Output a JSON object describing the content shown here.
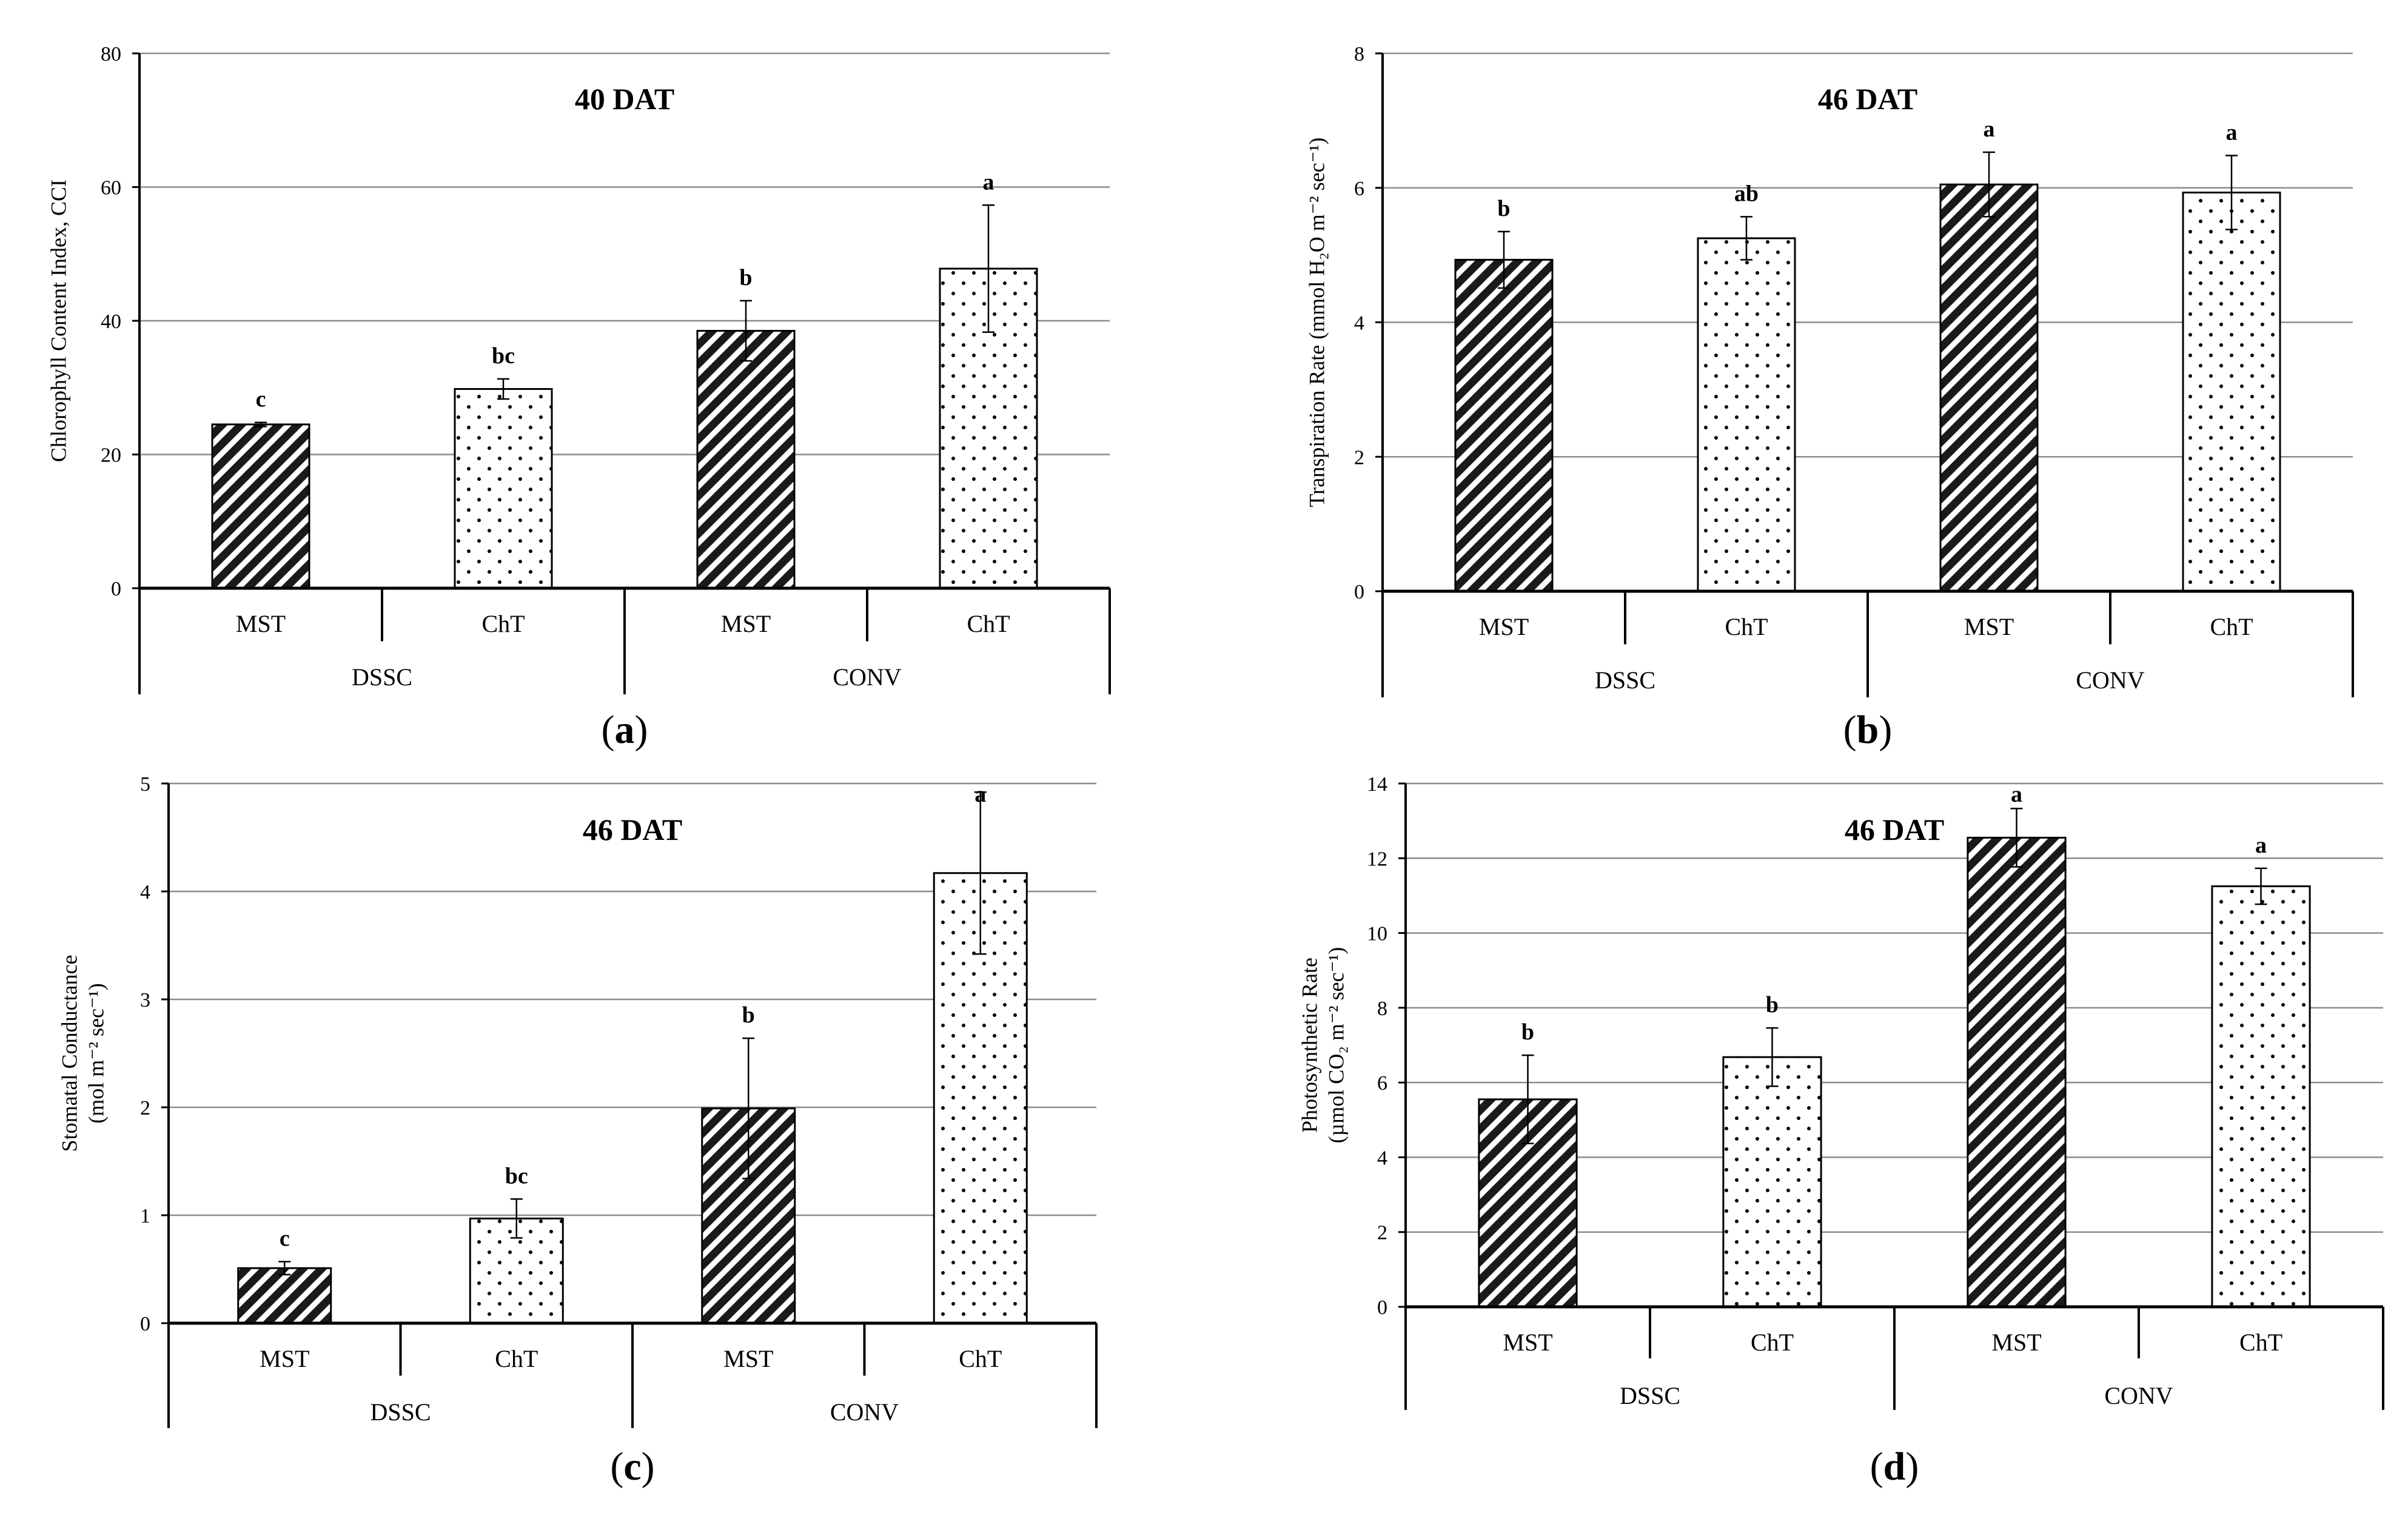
{
  "colors": {
    "axis": "#000000",
    "grid": "#8c8c8c",
    "bar_fill": "#ffffff",
    "bar_stroke": "#000000"
  },
  "chart_data": [
    {
      "id": "a",
      "type": "bar",
      "panel_label": "a",
      "title": "40 DAT",
      "ylabel_lines": [
        "Chlorophyll Content Index, CCI"
      ],
      "ylim": [
        0,
        80
      ],
      "yticks": [
        0,
        20,
        40,
        60,
        80
      ],
      "grid": true,
      "categories": [
        "MST",
        "ChT",
        "MST",
        "ChT"
      ],
      "groups": [
        "DSSC",
        "CONV"
      ],
      "patterns": [
        "hatch",
        "dots",
        "hatch",
        "dots"
      ],
      "values": [
        24.5,
        29.8,
        38.5,
        47.8
      ],
      "errors": [
        0.3,
        1.5,
        4.5,
        9.5
      ],
      "significance": [
        "c",
        "bc",
        "b",
        "a"
      ]
    },
    {
      "id": "b",
      "type": "bar",
      "panel_label": "b",
      "title": "46 DAT",
      "ylabel_lines": [
        "Transpiration Rate (mmol H₂O m⁻² sec⁻¹)"
      ],
      "ylim": [
        0,
        8
      ],
      "yticks": [
        0,
        2,
        4,
        6,
        8
      ],
      "grid": true,
      "categories": [
        "MST",
        "ChT",
        "MST",
        "ChT"
      ],
      "groups": [
        "DSSC",
        "CONV"
      ],
      "patterns": [
        "hatch",
        "dots",
        "hatch",
        "dots"
      ],
      "values": [
        4.93,
        5.25,
        6.05,
        5.93
      ],
      "errors": [
        0.42,
        0.32,
        0.48,
        0.55
      ],
      "significance": [
        "b",
        "ab",
        "a",
        "a"
      ]
    },
    {
      "id": "c",
      "type": "bar",
      "panel_label": "c",
      "title": "46 DAT",
      "ylabel_lines": [
        "Stomatal Conductance",
        "(mol  m⁻² sec⁻¹)"
      ],
      "ylim": [
        0,
        5
      ],
      "yticks": [
        0,
        1,
        2,
        3,
        4,
        5
      ],
      "grid": true,
      "categories": [
        "MST",
        "ChT",
        "MST",
        "ChT"
      ],
      "groups": [
        "DSSC",
        "CONV"
      ],
      "patterns": [
        "hatch",
        "dots",
        "hatch",
        "dots"
      ],
      "values": [
        0.51,
        0.97,
        1.99,
        4.17
      ],
      "errors": [
        0.06,
        0.18,
        0.65,
        0.75
      ],
      "significance": [
        "c",
        "bc",
        "b",
        "a"
      ]
    },
    {
      "id": "d",
      "type": "bar",
      "panel_label": "d",
      "title": "46 DAT",
      "ylabel_lines": [
        "Photosynthetic Rate",
        "(µmol CO₂ m⁻² sec⁻¹)"
      ],
      "ylim": [
        0,
        14
      ],
      "yticks": [
        0,
        2,
        4,
        6,
        8,
        10,
        12,
        14
      ],
      "grid": true,
      "categories": [
        "MST",
        "ChT",
        "MST",
        "ChT"
      ],
      "groups": [
        "DSSC",
        "CONV"
      ],
      "patterns": [
        "hatch",
        "dots",
        "hatch",
        "dots"
      ],
      "values": [
        5.55,
        6.68,
        12.55,
        11.25
      ],
      "errors": [
        1.18,
        0.78,
        0.78,
        0.48
      ],
      "significance": [
        "b",
        "b",
        "a",
        "a"
      ]
    }
  ]
}
